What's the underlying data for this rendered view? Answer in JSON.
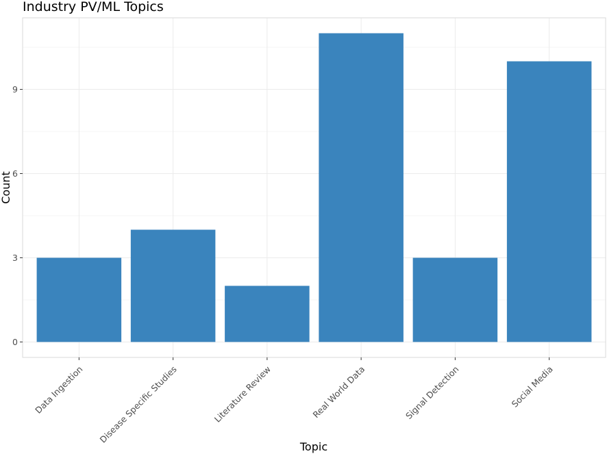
{
  "chart_data": {
    "type": "bar",
    "title": "Industry PV/ML Topics",
    "xlabel": "Topic",
    "ylabel": "Count",
    "categories": [
      "Data Ingestion",
      "Disease Specific Studies",
      "Literature Review",
      "Real World Data",
      "Signal Detection",
      "Social Media"
    ],
    "values": [
      3,
      4,
      2,
      11,
      3,
      10
    ],
    "ylim": [
      -0.55,
      11.55
    ],
    "yticks": [
      0,
      3,
      6,
      9
    ],
    "ytick_labels": [
      "0",
      "3",
      "6",
      "9"
    ],
    "grid": true,
    "legend": "none",
    "colors": {
      "bar": "#3A84BD",
      "grid_major": "#EBEBEB",
      "grid_minor": "#F5F5F5",
      "panel_border": "#D9D9D9",
      "text": "#000000",
      "tick_text": "#4D4D4D",
      "tick": "#333333"
    }
  }
}
